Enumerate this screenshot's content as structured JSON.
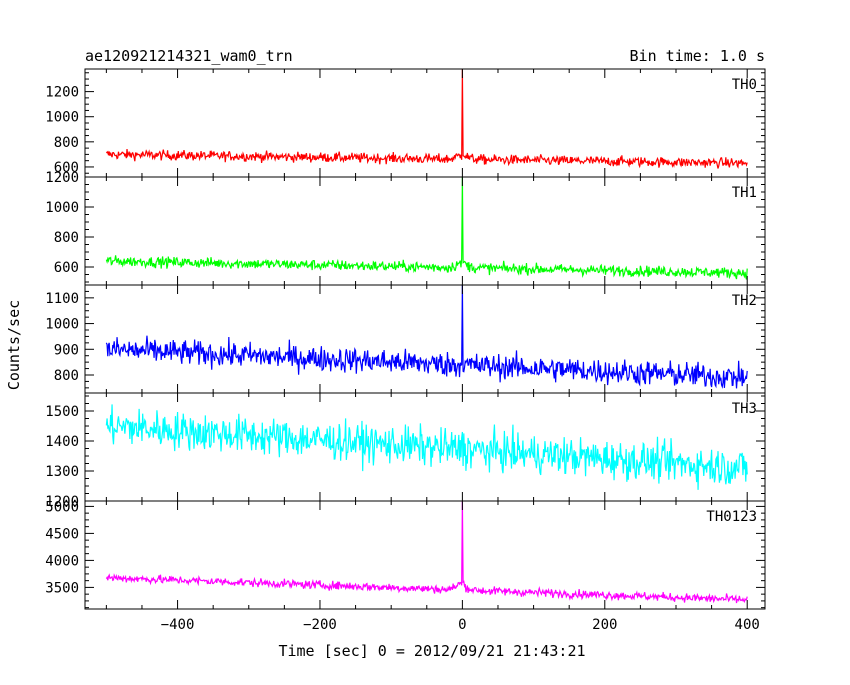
{
  "chart_data": {
    "type": "line",
    "title": "ae120921214321_wam0_trn",
    "bin_time": "Bin time: 1.0 s",
    "xlabel": "Time [sec] 0 = 2012/09/21 21:43:21",
    "ylabel": "Counts/sec",
    "xlim": [
      -530,
      425
    ],
    "x_ticks": [
      -400,
      -200,
      0,
      200,
      400
    ],
    "x_tick_labels": [
      "−400",
      "−200",
      "0",
      "200",
      "400"
    ],
    "x_range": [
      -500,
      400
    ],
    "panels": [
      {
        "name": "TH0",
        "color": "#ff0000",
        "ylim": [
          520,
          1380
        ],
        "yticks": [
          600,
          800,
          1000,
          1200
        ],
        "profile": {
          "start": 700,
          "end": 630,
          "noise": 28,
          "peak": 1380,
          "pre_bump": 30,
          "post_decay": 60
        }
      },
      {
        "name": "TH1",
        "color": "#00ff00",
        "ylim": [
          480,
          1200
        ],
        "yticks": [
          600,
          800,
          1000,
          1200
        ],
        "profile": {
          "start": 640,
          "end": 560,
          "noise": 25,
          "peak": 1200,
          "pre_bump": 30,
          "post_decay": 50
        }
      },
      {
        "name": "TH2",
        "color": "#0000ff",
        "ylim": [
          730,
          1150
        ],
        "yticks": [
          800,
          900,
          1000,
          1100
        ],
        "profile": {
          "start": 900,
          "end": 790,
          "noise": 35,
          "peak": 1150,
          "pre_bump": 0,
          "post_decay": 0
        }
      },
      {
        "name": "TH3",
        "color": "#00ffff",
        "ylim": [
          1200,
          1560
        ],
        "yticks": [
          1200,
          1300,
          1400,
          1500
        ],
        "profile": {
          "start": 1450,
          "end": 1310,
          "noise": 45,
          "peak": 1430,
          "pre_bump": 0,
          "post_decay": 0
        }
      },
      {
        "name": "TH0123",
        "color": "#ff00ff",
        "ylim": [
          3100,
          5100
        ],
        "yticks": [
          3500,
          4000,
          4500,
          5000
        ],
        "profile": {
          "start": 3680,
          "end": 3270,
          "noise": 55,
          "peak": 5100,
          "pre_bump": 120,
          "post_decay": 150
        }
      }
    ]
  }
}
